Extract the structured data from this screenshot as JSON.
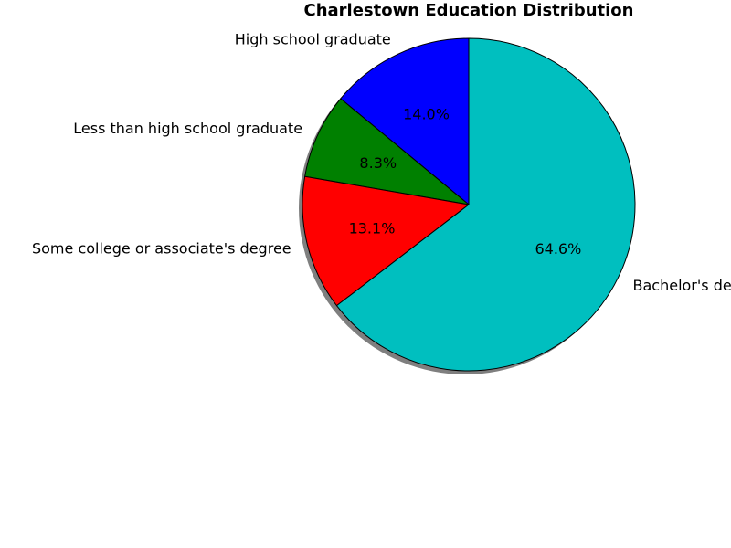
{
  "chart_data": {
    "type": "pie",
    "title": "Charlestown Education Distribution",
    "slices": [
      {
        "label": "High school graduate",
        "value": 14.0,
        "pct_label": "14.0%",
        "color": "#0000ff"
      },
      {
        "label": "Less than high school graduate",
        "value": 8.3,
        "pct_label": "8.3%",
        "color": "#008000"
      },
      {
        "label": "Some college or associate's degree",
        "value": 13.1,
        "pct_label": "13.1%",
        "color": "#ff0000"
      },
      {
        "label": "Bachelor's degree or higher",
        "value": 64.6,
        "pct_label": "64.6%",
        "color": "#00bfbf"
      }
    ],
    "start_angle_deg": 90,
    "direction": "counterclockwise",
    "shadow": true,
    "legend": "none"
  }
}
